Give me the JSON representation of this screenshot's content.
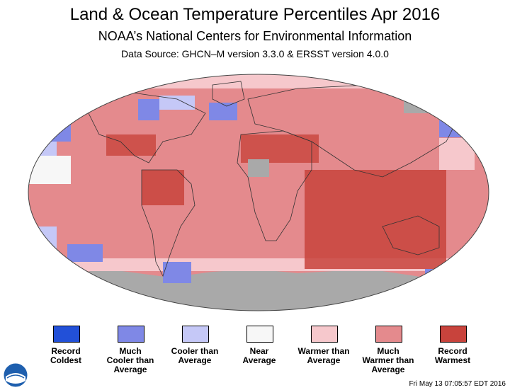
{
  "header": {
    "title": "Land & Ocean Temperature Percentiles Apr 2016",
    "subtitle": "NOAA’s National Centers for Environmental Information",
    "source": "Data Source: GHCN–M version 3.3.0 & ERSST version 4.0.0"
  },
  "legend": [
    {
      "label": "Record\nColdest",
      "color": "#2250d8"
    },
    {
      "label": "Much\nCooler than\nAverage",
      "color": "#7f88e6"
    },
    {
      "label": "Cooler than\nAverage",
      "color": "#c5c8f7"
    },
    {
      "label": "Near\nAverage",
      "color": "#f7f7f7"
    },
    {
      "label": "Warmer than\nAverage",
      "color": "#f6c8cc"
    },
    {
      "label": "Much\nWarmer than\nAverage",
      "color": "#e48a8d"
    },
    {
      "label": "Record\nWarmest",
      "color": "#c8433c"
    }
  ],
  "no_data_color": "#a9a9a9",
  "footer": {
    "timestamp": "Fri May 13 07:05:57 EDT 2016",
    "logo_text": "NOAA"
  }
}
